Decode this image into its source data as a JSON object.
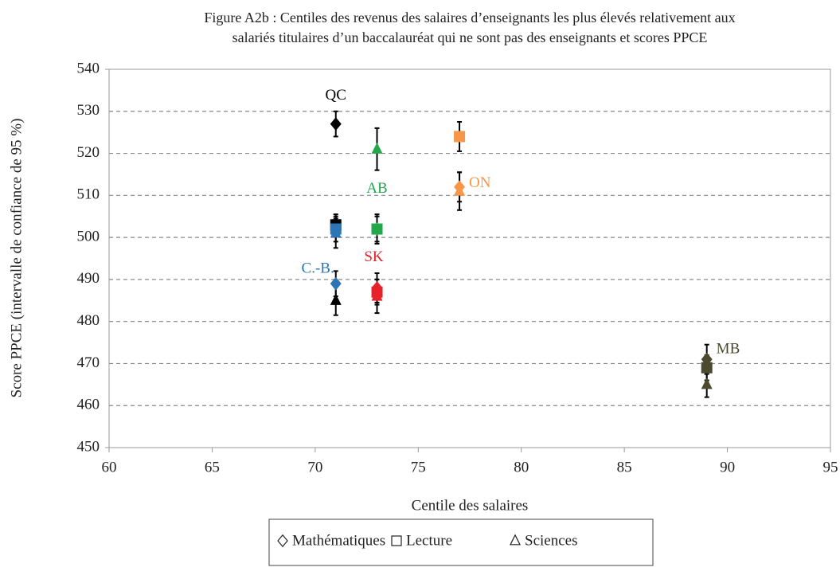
{
  "chart_data": {
    "type": "scatter",
    "title": [
      "Figure A2b : Centiles des revenus des salaires d’enseignants les plus élevés relativement aux",
      "salariés titulaires d’un baccalauréat qui ne sont pas des enseignants et scores PPCE"
    ],
    "x_label": "Centile des salaires",
    "y_label": "Score PPCE (intervalle de confiance de 95 %)",
    "xlim": [
      60,
      95
    ],
    "xticks": [
      60,
      65,
      70,
      75,
      80,
      85,
      90,
      95
    ],
    "ylim": [
      450,
      540
    ],
    "yticks": [
      450,
      460,
      470,
      480,
      490,
      500,
      510,
      520,
      530,
      540
    ],
    "grid": true,
    "provinces": [
      {
        "name": "QC",
        "color": "#000000",
        "x": 71
      },
      {
        "name": "C.-B.",
        "color": "#2e75b6",
        "x": 71
      },
      {
        "name": "AB",
        "color": "#22a84a",
        "x": 73
      },
      {
        "name": "SK",
        "color": "#e8202a",
        "x": 73
      },
      {
        "name": "ON",
        "color": "#f79646",
        "x": 77
      },
      {
        "name": "MB",
        "color": "#4b4a2e",
        "x": 89
      }
    ],
    "series": [
      {
        "name": "Lecture",
        "marker": "square",
        "values": [
          503,
          502,
          502,
          487,
          524,
          469
        ],
        "errors": [
          2.5,
          3,
          3,
          3,
          3.5,
          3
        ]
      },
      {
        "name": "Sciences",
        "marker": "triangle",
        "values": [
          485,
          501,
          521,
          486,
          511,
          465
        ],
        "errors": [
          3.5,
          3.5,
          5,
          4,
          4.5,
          3
        ]
      },
      {
        "name": "Mathématiques",
        "marker": "diamond",
        "values": [
          527,
          489,
          502,
          488,
          512,
          471
        ],
        "errors": [
          3,
          3,
          3.5,
          3.5,
          3.5,
          3.5
        ]
      }
    ],
    "legend_order": [
      2,
      0,
      1
    ]
  }
}
